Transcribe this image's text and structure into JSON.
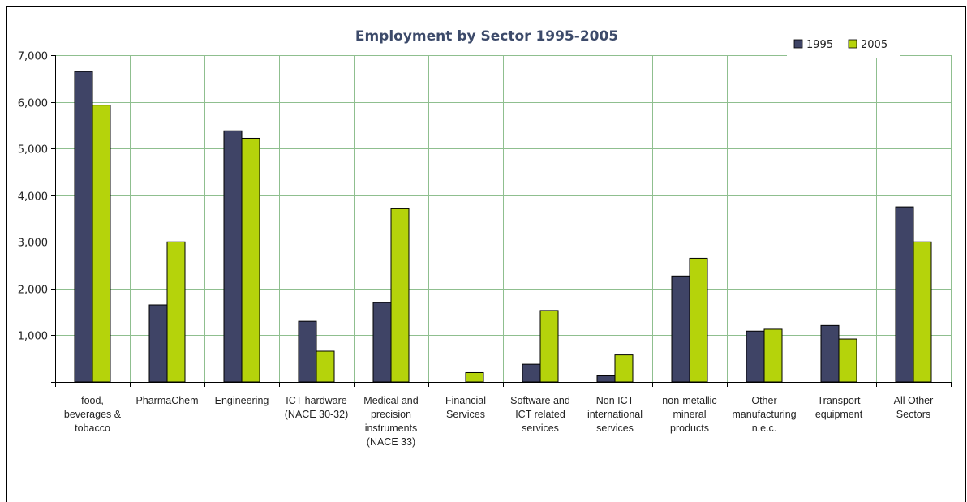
{
  "chart_data": {
    "type": "bar",
    "title": "Employment by Sector 1995-2005",
    "xlabel": "",
    "ylabel": "",
    "ylim": [
      0,
      7000
    ],
    "yticks": [
      "1,000",
      "2,000",
      "3,000",
      "4,000",
      "5,000",
      "6,000",
      "7,000"
    ],
    "ytick_values": [
      1000,
      2000,
      3000,
      4000,
      5000,
      6000,
      7000
    ],
    "grid": true,
    "legend_position": "top-right",
    "categories": [
      [
        "food,",
        "beverages &",
        "tobacco"
      ],
      [
        "PharmaChem"
      ],
      [
        "Engineering"
      ],
      [
        "ICT hardware",
        "(NACE 30-32)"
      ],
      [
        "Medical and",
        "precision",
        "instruments",
        "(NACE 33)"
      ],
      [
        "Financial",
        "Services"
      ],
      [
        "Software and",
        "ICT related",
        "services"
      ],
      [
        "Non ICT",
        "international",
        "services"
      ],
      [
        "non-metallic",
        "mineral",
        "products"
      ],
      [
        "Other",
        "manufacturing",
        "n.e.c."
      ],
      [
        "Transport",
        "equipment"
      ],
      [
        "All Other",
        "Sectors"
      ]
    ],
    "series": [
      {
        "name": "1995",
        "color": "#3f4466",
        "values": [
          6650,
          1650,
          5380,
          1300,
          1700,
          0,
          380,
          130,
          2270,
          1090,
          1210,
          3750
        ]
      },
      {
        "name": "2005",
        "color": "#b5d30b",
        "values": [
          5930,
          3000,
          5220,
          660,
          3710,
          200,
          1530,
          580,
          2650,
          1130,
          920,
          3000
        ]
      }
    ]
  }
}
